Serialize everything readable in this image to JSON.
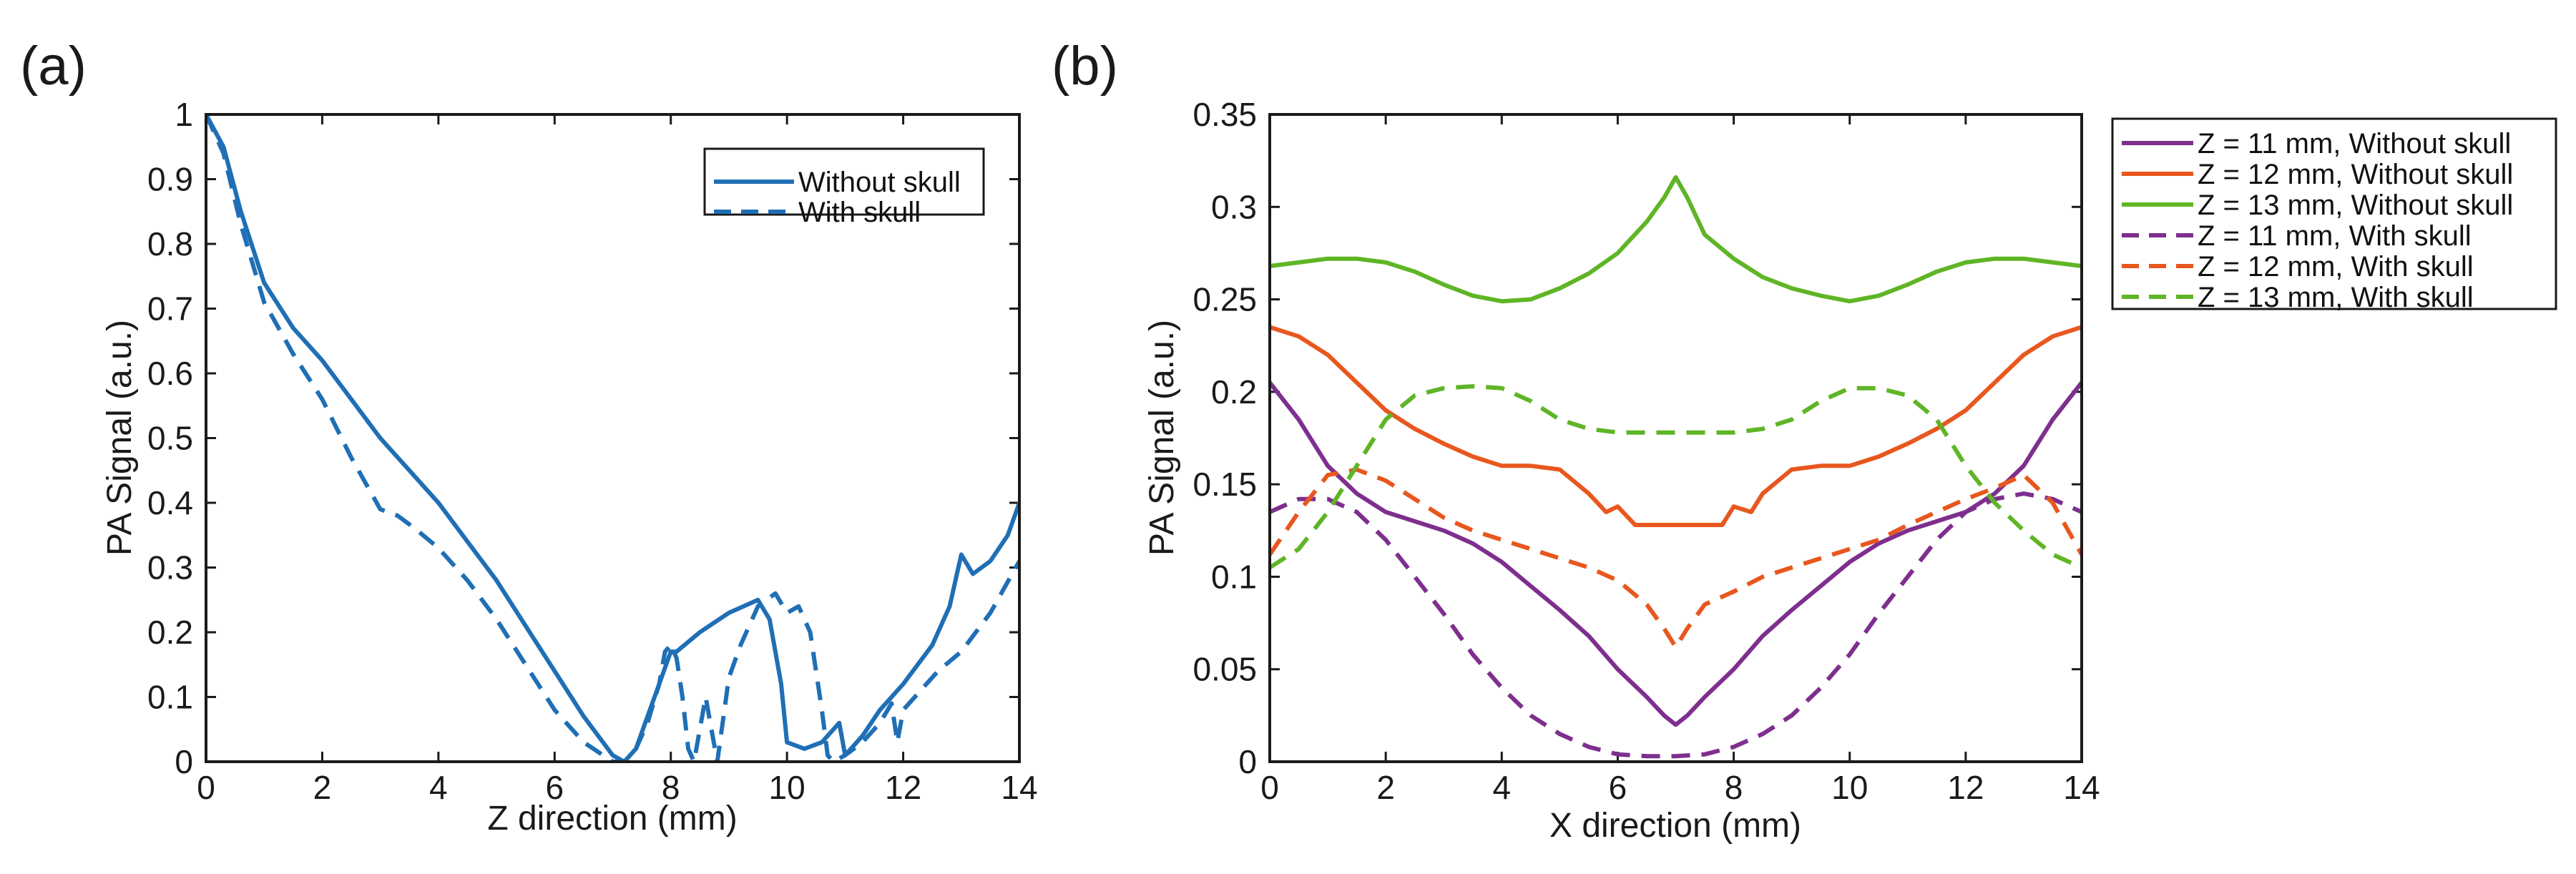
{
  "chart_data": [
    {
      "type": "line",
      "panel_label": "(a)",
      "xlabel": "Z direction (mm)",
      "ylabel": "PA Signal (a.u.)",
      "xlim": [
        0,
        14
      ],
      "ylim": [
        0,
        1
      ],
      "xticks": [
        0,
        2,
        4,
        6,
        8,
        10,
        12,
        14
      ],
      "yticks": [
        0,
        0.1,
        0.2,
        0.3,
        0.4,
        0.5,
        0.6,
        0.7,
        0.8,
        0.9,
        1
      ],
      "ytick_labels": [
        "0",
        "0.1",
        "0.2",
        "0.3",
        "0.4",
        "0.5",
        "0.6",
        "0.7",
        "0.8",
        "0.9",
        "1"
      ],
      "grid": false,
      "legend_position": "top-right",
      "series": [
        {
          "name": "Without skull",
          "color": "#1f6fb5",
          "style": "solid",
          "x": [
            0,
            0.3,
            0.6,
            1.0,
            1.5,
            2.0,
            2.5,
            3.0,
            3.5,
            4.0,
            4.5,
            5.0,
            5.5,
            6.0,
            6.5,
            7.0,
            7.2,
            7.4,
            7.6,
            7.8,
            8.0,
            8.1,
            8.5,
            9.0,
            9.5,
            9.7,
            9.9,
            10.0,
            10.3,
            10.6,
            10.9,
            11.0,
            11.3,
            11.6,
            12.0,
            12.5,
            12.8,
            13.0,
            13.2,
            13.5,
            13.8,
            14.0
          ],
          "y": [
            1.0,
            0.95,
            0.85,
            0.74,
            0.67,
            0.62,
            0.56,
            0.5,
            0.45,
            0.4,
            0.34,
            0.28,
            0.21,
            0.14,
            0.07,
            0.01,
            0.0,
            0.02,
            0.07,
            0.12,
            0.17,
            0.17,
            0.2,
            0.23,
            0.25,
            0.22,
            0.12,
            0.03,
            0.02,
            0.03,
            0.06,
            0.01,
            0.04,
            0.08,
            0.12,
            0.18,
            0.24,
            0.32,
            0.29,
            0.31,
            0.35,
            0.4
          ]
        },
        {
          "name": "With skull",
          "color": "#1f6fb5",
          "style": "dashed",
          "x": [
            0,
            0.3,
            0.6,
            1.0,
            1.5,
            2.0,
            2.5,
            3.0,
            3.3,
            3.6,
            4.0,
            4.5,
            5.0,
            5.5,
            6.0,
            6.5,
            7.0,
            7.2,
            7.4,
            7.6,
            7.8,
            7.9,
            8.0,
            8.1,
            8.2,
            8.3,
            8.4,
            8.6,
            8.8,
            9.0,
            9.2,
            9.5,
            9.8,
            10.0,
            10.2,
            10.4,
            10.6,
            10.7,
            10.8,
            11.0,
            11.3,
            11.6,
            11.8,
            11.9,
            12.0,
            12.3,
            12.6,
            13.0,
            13.5,
            14.0
          ],
          "y": [
            1.0,
            0.94,
            0.83,
            0.71,
            0.63,
            0.56,
            0.47,
            0.39,
            0.38,
            0.36,
            0.33,
            0.28,
            0.22,
            0.15,
            0.08,
            0.03,
            0.0,
            0.0,
            0.02,
            0.06,
            0.12,
            0.17,
            0.18,
            0.16,
            0.1,
            0.02,
            0.0,
            0.1,
            0.0,
            0.13,
            0.18,
            0.24,
            0.26,
            0.23,
            0.24,
            0.2,
            0.08,
            0.01,
            0.0,
            0.01,
            0.03,
            0.06,
            0.09,
            0.03,
            0.08,
            0.11,
            0.14,
            0.17,
            0.23,
            0.31
          ]
        }
      ]
    },
    {
      "type": "line",
      "panel_label": "(b)",
      "xlabel": "X direction (mm)",
      "ylabel": "PA Signal (a.u.)",
      "xlim": [
        0,
        14
      ],
      "ylim": [
        0,
        0.35
      ],
      "xticks": [
        0,
        2,
        4,
        6,
        8,
        10,
        12,
        14
      ],
      "yticks": [
        0,
        0.05,
        0.1,
        0.15,
        0.2,
        0.25,
        0.3,
        0.35
      ],
      "ytick_labels": [
        "0",
        "0.05",
        "0.1",
        "0.15",
        "0.2",
        "0.25",
        "0.3",
        "0.35"
      ],
      "grid": false,
      "legend_position": "outside-right",
      "series": [
        {
          "name": "Z = 11 mm, Without skull",
          "color": "#7e2f8e",
          "style": "solid",
          "x": [
            0,
            0.5,
            1.0,
            1.5,
            2.0,
            2.5,
            3.0,
            3.5,
            4.0,
            4.5,
            5.0,
            5.5,
            6.0,
            6.5,
            6.8,
            7.0,
            7.2,
            7.5,
            8.0,
            8.5,
            9.0,
            9.5,
            10.0,
            10.5,
            11.0,
            11.5,
            12.0,
            12.5,
            13.0,
            13.5,
            14.0
          ],
          "y": [
            0.205,
            0.185,
            0.16,
            0.145,
            0.135,
            0.13,
            0.125,
            0.118,
            0.108,
            0.095,
            0.082,
            0.068,
            0.05,
            0.035,
            0.025,
            0.02,
            0.025,
            0.035,
            0.05,
            0.068,
            0.082,
            0.095,
            0.108,
            0.118,
            0.125,
            0.13,
            0.135,
            0.145,
            0.16,
            0.185,
            0.205
          ]
        },
        {
          "name": "Z = 12 mm, Without skull",
          "color": "#e8571e",
          "style": "solid",
          "x": [
            0,
            0.5,
            1.0,
            1.5,
            2.0,
            2.5,
            3.0,
            3.5,
            4.0,
            4.5,
            5.0,
            5.5,
            5.8,
            6.0,
            6.3,
            6.5,
            7.0,
            7.5,
            7.8,
            8.0,
            8.3,
            8.5,
            9.0,
            9.5,
            10.0,
            10.5,
            11.0,
            11.5,
            12.0,
            12.5,
            13.0,
            13.5,
            14.0
          ],
          "y": [
            0.235,
            0.23,
            0.22,
            0.205,
            0.19,
            0.18,
            0.172,
            0.165,
            0.16,
            0.16,
            0.158,
            0.145,
            0.135,
            0.138,
            0.128,
            0.128,
            0.128,
            0.128,
            0.128,
            0.138,
            0.135,
            0.145,
            0.158,
            0.16,
            0.16,
            0.165,
            0.172,
            0.18,
            0.19,
            0.205,
            0.22,
            0.23,
            0.235
          ]
        },
        {
          "name": "Z = 13 mm, Without skull",
          "color": "#5fb526",
          "style": "solid",
          "x": [
            0,
            0.5,
            1.0,
            1.5,
            2.0,
            2.5,
            3.0,
            3.5,
            4.0,
            4.5,
            5.0,
            5.5,
            6.0,
            6.5,
            6.8,
            7.0,
            7.2,
            7.5,
            8.0,
            8.5,
            9.0,
            9.5,
            10.0,
            10.5,
            11.0,
            11.5,
            12.0,
            12.5,
            13.0,
            13.5,
            14.0
          ],
          "y": [
            0.268,
            0.27,
            0.272,
            0.272,
            0.27,
            0.265,
            0.258,
            0.252,
            0.249,
            0.25,
            0.256,
            0.264,
            0.275,
            0.292,
            0.305,
            0.316,
            0.305,
            0.285,
            0.272,
            0.262,
            0.256,
            0.252,
            0.249,
            0.252,
            0.258,
            0.265,
            0.27,
            0.272,
            0.272,
            0.27,
            0.268
          ]
        },
        {
          "name": "Z = 11 mm, With skull",
          "color": "#7e2f8e",
          "style": "dashed",
          "x": [
            0,
            0.5,
            1.0,
            1.5,
            2.0,
            2.5,
            3.0,
            3.5,
            4.0,
            4.5,
            5.0,
            5.5,
            6.0,
            6.5,
            7.0,
            7.5,
            8.0,
            8.5,
            9.0,
            9.5,
            10.0,
            10.5,
            11.0,
            11.5,
            12.0,
            12.5,
            13.0,
            13.5,
            14.0
          ],
          "y": [
            0.135,
            0.142,
            0.142,
            0.135,
            0.12,
            0.1,
            0.08,
            0.058,
            0.04,
            0.025,
            0.015,
            0.008,
            0.004,
            0.003,
            0.003,
            0.004,
            0.008,
            0.015,
            0.025,
            0.04,
            0.058,
            0.08,
            0.1,
            0.12,
            0.135,
            0.142,
            0.145,
            0.142,
            0.135
          ]
        },
        {
          "name": "Z = 12 mm, With skull",
          "color": "#e8571e",
          "style": "dashed",
          "x": [
            0,
            0.5,
            1.0,
            1.5,
            2.0,
            2.5,
            3.0,
            3.5,
            4.0,
            4.5,
            5.0,
            5.5,
            6.0,
            6.5,
            6.8,
            7.0,
            7.2,
            7.5,
            8.0,
            8.5,
            9.0,
            9.5,
            10.0,
            10.5,
            11.0,
            11.5,
            12.0,
            12.5,
            13.0,
            13.5,
            14.0
          ],
          "y": [
            0.112,
            0.135,
            0.155,
            0.158,
            0.152,
            0.142,
            0.132,
            0.125,
            0.12,
            0.115,
            0.11,
            0.105,
            0.098,
            0.085,
            0.072,
            0.062,
            0.072,
            0.085,
            0.092,
            0.1,
            0.105,
            0.11,
            0.115,
            0.12,
            0.128,
            0.135,
            0.142,
            0.148,
            0.155,
            0.14,
            0.112
          ]
        },
        {
          "name": "Z = 13 mm, With skull",
          "color": "#5fb526",
          "style": "dashed",
          "x": [
            0,
            0.5,
            1.0,
            1.5,
            2.0,
            2.5,
            3.0,
            3.5,
            4.0,
            4.5,
            5.0,
            5.5,
            6.0,
            6.5,
            7.0,
            7.5,
            8.0,
            8.5,
            9.0,
            9.5,
            10.0,
            10.5,
            11.0,
            11.5,
            12.0,
            12.5,
            13.0,
            13.5,
            14.0
          ],
          "y": [
            0.105,
            0.115,
            0.135,
            0.16,
            0.185,
            0.198,
            0.202,
            0.203,
            0.202,
            0.195,
            0.185,
            0.18,
            0.178,
            0.178,
            0.178,
            0.178,
            0.178,
            0.18,
            0.185,
            0.195,
            0.202,
            0.202,
            0.198,
            0.185,
            0.16,
            0.14,
            0.125,
            0.112,
            0.105
          ]
        }
      ]
    }
  ]
}
